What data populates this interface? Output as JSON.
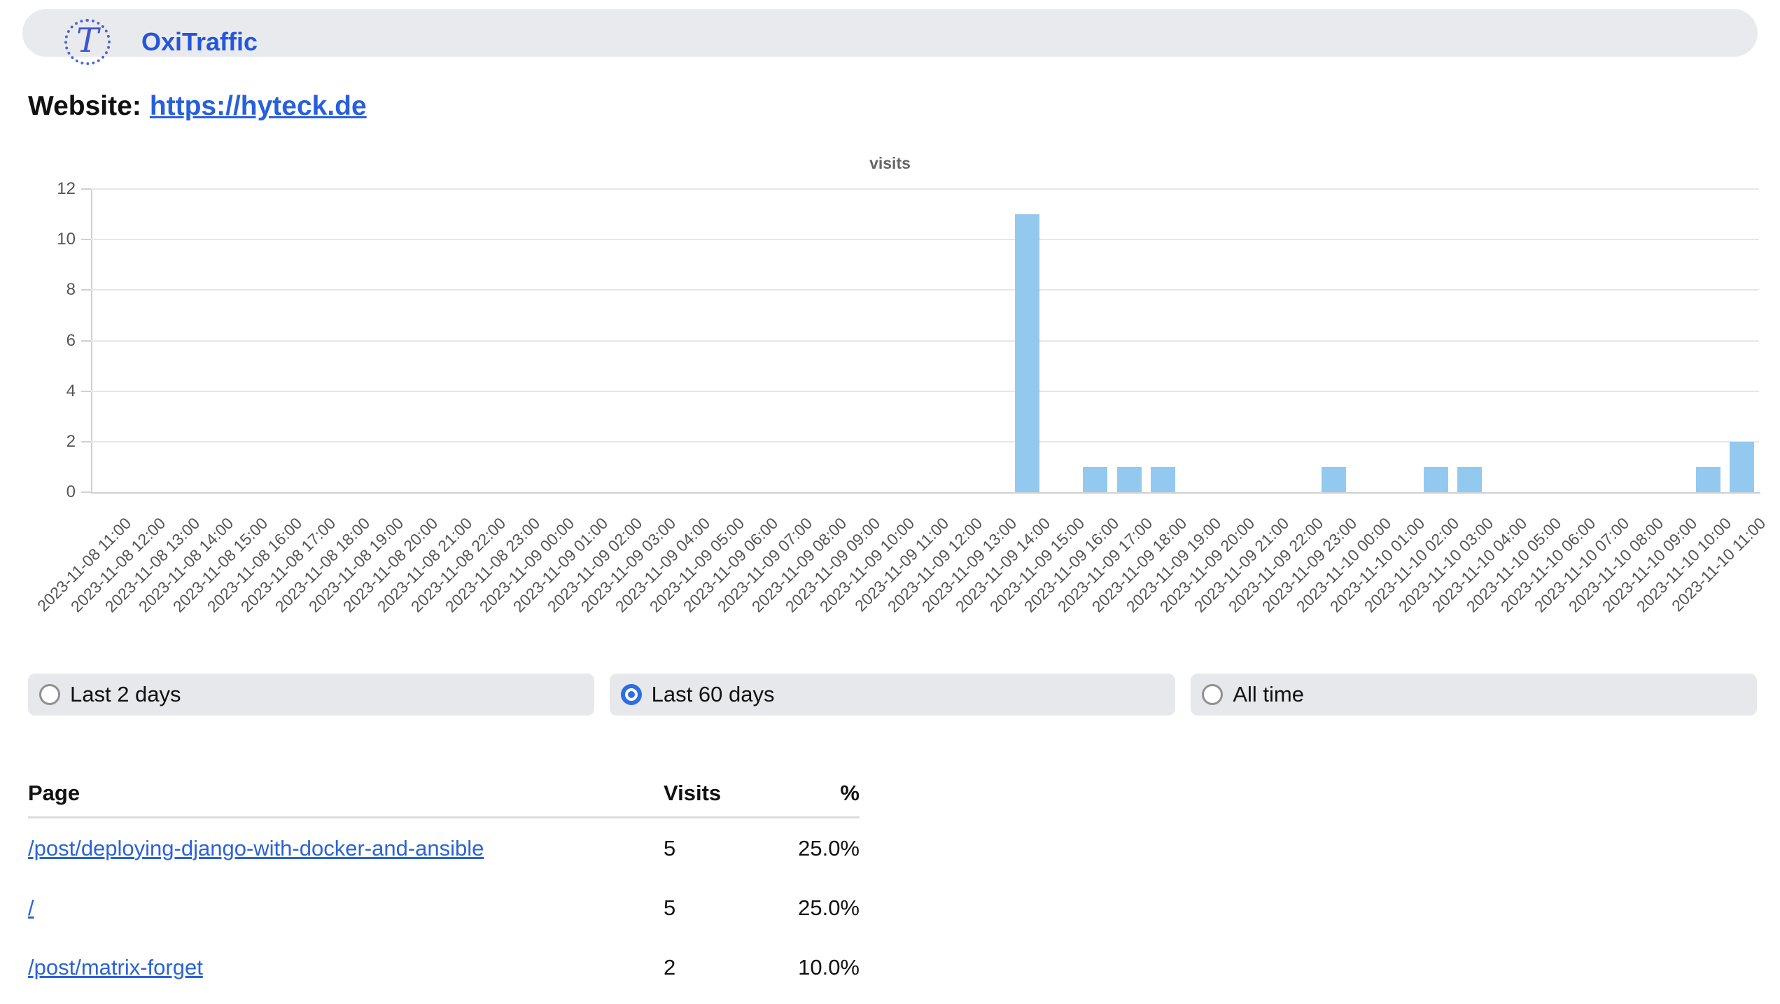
{
  "header": {
    "brand": "OxiTraffic",
    "logo_letter": "T"
  },
  "website": {
    "label": "Website:",
    "url_text": "https://hyteck.de"
  },
  "chart_data": {
    "type": "bar",
    "title": "visits",
    "xlabel": "",
    "ylabel": "",
    "ylim": [
      0,
      12
    ],
    "yticks": [
      0,
      2,
      4,
      6,
      8,
      10,
      12
    ],
    "grid": "horizontal-only",
    "legend": "none",
    "bar_color": "#94c9ef",
    "categories": [
      "2023-11-08 11:00",
      "2023-11-08 12:00",
      "2023-11-08 13:00",
      "2023-11-08 14:00",
      "2023-11-08 15:00",
      "2023-11-08 16:00",
      "2023-11-08 17:00",
      "2023-11-08 18:00",
      "2023-11-08 19:00",
      "2023-11-08 20:00",
      "2023-11-08 21:00",
      "2023-11-08 22:00",
      "2023-11-08 23:00",
      "2023-11-09 00:00",
      "2023-11-09 01:00",
      "2023-11-09 02:00",
      "2023-11-09 03:00",
      "2023-11-09 04:00",
      "2023-11-09 05:00",
      "2023-11-09 06:00",
      "2023-11-09 07:00",
      "2023-11-09 08:00",
      "2023-11-09 09:00",
      "2023-11-09 10:00",
      "2023-11-09 11:00",
      "2023-11-09 12:00",
      "2023-11-09 13:00",
      "2023-11-09 14:00",
      "2023-11-09 15:00",
      "2023-11-09 16:00",
      "2023-11-09 17:00",
      "2023-11-09 18:00",
      "2023-11-09 19:00",
      "2023-11-09 20:00",
      "2023-11-09 21:00",
      "2023-11-09 22:00",
      "2023-11-09 23:00",
      "2023-11-10 00:00",
      "2023-11-10 01:00",
      "2023-11-10 02:00",
      "2023-11-10 03:00",
      "2023-11-10 04:00",
      "2023-11-10 05:00",
      "2023-11-10 06:00",
      "2023-11-10 07:00",
      "2023-11-10 08:00",
      "2023-11-10 09:00",
      "2023-11-10 10:00",
      "2023-11-10 11:00"
    ],
    "values": [
      0,
      0,
      0,
      0,
      0,
      0,
      0,
      0,
      0,
      0,
      0,
      0,
      0,
      0,
      0,
      0,
      0,
      0,
      0,
      0,
      0,
      0,
      0,
      0,
      0,
      0,
      0,
      11,
      0,
      1,
      1,
      1,
      0,
      0,
      0,
      0,
      1,
      0,
      0,
      1,
      1,
      0,
      0,
      0,
      0,
      0,
      0,
      1,
      2
    ]
  },
  "time_filters": {
    "options": [
      {
        "label": "Last 2 days",
        "selected": false
      },
      {
        "label": "Last 60 days",
        "selected": true
      },
      {
        "label": "All time",
        "selected": false
      }
    ]
  },
  "pages_table": {
    "columns": [
      "Page",
      "Visits",
      "%"
    ],
    "rows": [
      {
        "page": "/post/deploying-django-with-docker-and-ansible",
        "visits": "5",
        "percent": "25.0%"
      },
      {
        "page": "/",
        "visits": "5",
        "percent": "25.0%"
      },
      {
        "page": "/post/matrix-forget",
        "visits": "2",
        "percent": "10.0%"
      }
    ]
  },
  "colors": {
    "accent_blue": "#2760dd",
    "bar_blue": "#94c9ef",
    "pill_gray": "#e9eaed",
    "axis_text": "#555555"
  }
}
